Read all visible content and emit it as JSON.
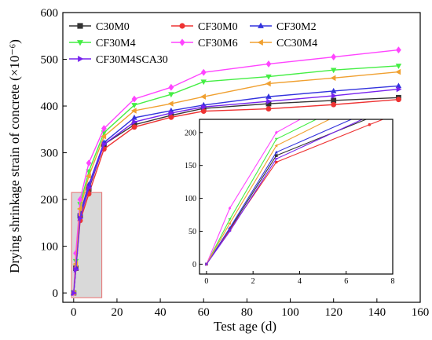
{
  "chart_data": {
    "type": "line",
    "xlabel": "Test age (d)",
    "ylabel": "Drying shrinkage strain of concrete (×10⁻⁶)",
    "xlim": [
      -5,
      160
    ],
    "ylim": [
      -20,
      600
    ],
    "xticks": [
      0,
      20,
      40,
      60,
      80,
      100,
      120,
      140,
      160
    ],
    "yticks": [
      0,
      100,
      200,
      300,
      400,
      500,
      600
    ],
    "x": [
      0,
      1,
      3,
      7,
      14,
      28,
      45,
      60,
      90,
      120,
      150
    ],
    "series": [
      {
        "name": "C30M0",
        "color": "#333333",
        "marker": "square",
        "values": [
          0,
          53,
          165,
          222,
          318,
          360,
          380,
          395,
          405,
          412,
          418
        ]
      },
      {
        "name": "CF30M0",
        "color": "#ee3333",
        "marker": "circle",
        "values": [
          0,
          52,
          155,
          212,
          308,
          355,
          376,
          389,
          394,
          403,
          414
        ]
      },
      {
        "name": "CF30M2",
        "color": "#3333dd",
        "marker": "triangle",
        "values": [
          0,
          55,
          170,
          232,
          322,
          375,
          390,
          402,
          420,
          432,
          443
        ]
      },
      {
        "name": "CF30M4",
        "color": "#44ee44",
        "marker": "triangle-down",
        "values": [
          0,
          68,
          190,
          260,
          343,
          402,
          425,
          452,
          463,
          477,
          486
        ]
      },
      {
        "name": "CF30M6",
        "color": "#ff44ff",
        "marker": "diamond",
        "values": [
          0,
          85,
          200,
          278,
          352,
          415,
          440,
          472,
          490,
          505,
          520
        ]
      },
      {
        "name": "CC30M4",
        "color": "#f0a030",
        "marker": "triangle-left",
        "values": [
          0,
          62,
          180,
          250,
          335,
          390,
          405,
          420,
          448,
          460,
          473
        ]
      },
      {
        "name": "CF30M4SCA30",
        "color": "#7722ee",
        "marker": "triangle-right",
        "values": [
          0,
          50,
          160,
          225,
          318,
          366,
          385,
          398,
          410,
          422,
          436
        ]
      }
    ],
    "highlight_box": {
      "x": [
        -1,
        13
      ],
      "y": [
        -10,
        215
      ]
    },
    "inset": {
      "xlim": [
        -0.3,
        8
      ],
      "ylim": [
        -15,
        220
      ],
      "xticks": [
        0,
        2,
        4,
        6,
        8
      ],
      "yticks": [
        0,
        50,
        100,
        150,
        200
      ]
    }
  }
}
